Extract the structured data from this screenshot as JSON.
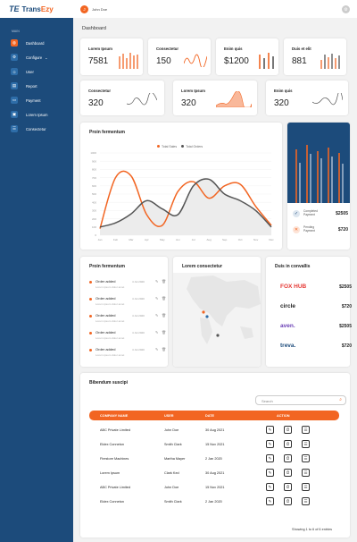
{
  "app": {
    "logo_mark": "TE",
    "logo_name_a": "Trans",
    "logo_name_b": "Ezy"
  },
  "sidebar": {
    "section": "MAIN",
    "items": [
      {
        "label": "Dashboard",
        "icon": "dashboard-icon",
        "glyph": "◍"
      },
      {
        "label": "Configure",
        "icon": "configure-icon",
        "glyph": "⚙",
        "chevron": "⌄"
      },
      {
        "label": "User",
        "icon": "user-icon",
        "glyph": "☺"
      },
      {
        "label": "Report",
        "icon": "report-icon",
        "glyph": "▤"
      },
      {
        "label": "Payment",
        "icon": "payment-icon",
        "glyph": "▭"
      },
      {
        "label": "Lorem Ipsum",
        "icon": "lorem-icon",
        "glyph": "▣"
      },
      {
        "label": "Consectetur",
        "icon": "list-icon",
        "glyph": "☰"
      }
    ]
  },
  "topbar": {
    "avatar": "J",
    "user": "John Doe",
    "btn": "⚙"
  },
  "page": {
    "title": "Dashboard"
  },
  "stats": [
    {
      "label": "Lorem Ipsum",
      "value": "7581"
    },
    {
      "label": "Consectetur",
      "value": "150"
    },
    {
      "label": "Enim quis",
      "value": "$1200"
    },
    {
      "label": "Duis et elit",
      "value": "881"
    },
    {
      "label": "Consectetur",
      "value": "320"
    },
    {
      "label": "Lorem Ipsum",
      "value": "320"
    },
    {
      "label": "Enim quis",
      "value": "320"
    }
  ],
  "main_chart": {
    "title": "Proin fermentum",
    "legend": [
      "Total Sales",
      "Total Orders"
    ],
    "y_ticks": [
      "1000",
      "900",
      "800",
      "700",
      "600",
      "500",
      "400",
      "300",
      "200",
      "100",
      "0"
    ],
    "x_ticks": [
      "Jan",
      "Feb",
      "Mar",
      "Apr",
      "May",
      "Jun",
      "Jul",
      "Aug",
      "Sep",
      "Oct",
      "Nov",
      "Dec"
    ]
  },
  "chart_data": {
    "type": "line",
    "title": "Proin fermentum",
    "categories": [
      "Jan",
      "Feb",
      "Mar",
      "Apr",
      "May",
      "Jun",
      "Jul",
      "Aug",
      "Sep",
      "Oct",
      "Nov",
      "Dec"
    ],
    "series": [
      {
        "name": "Total Sales",
        "values": [
          80,
          700,
          720,
          250,
          120,
          530,
          650,
          450,
          600,
          620,
          350,
          120
        ]
      },
      {
        "name": "Total Orders",
        "values": [
          100,
          150,
          260,
          420,
          320,
          250,
          600,
          680,
          500,
          420,
          300,
          100
        ]
      }
    ],
    "ylim": [
      0,
      1000
    ],
    "colors": [
      "#f26522",
      "#555555"
    ]
  },
  "payments": [
    {
      "label": "Completed Payment",
      "label_a": "Completed",
      "label_b": "Payment",
      "value": "$2505",
      "glyph": "✓"
    },
    {
      "label": "Pending Payment",
      "label_a": "Pending",
      "label_b": "Payment",
      "value": "$720",
      "glyph": "✕"
    }
  ],
  "activity": {
    "title": "Proin fermentum",
    "rows": [
      {
        "title": "Order added",
        "date": "4 Jul 2020",
        "sub": "Lorem ipsum dolor amet"
      },
      {
        "title": "Order added",
        "date": "4 Jul 2020",
        "sub": "Lorem ipsum dolor amet"
      },
      {
        "title": "Order added",
        "date": "4 Jul 2020",
        "sub": "Lorem ipsum dolor amet"
      },
      {
        "title": "Order added",
        "date": "4 Jul 2020",
        "sub": "Lorem ipsum dolor amet"
      },
      {
        "title": "Order added",
        "date": "4 Jul 2020",
        "sub": "Lorem ipsum dolor amet"
      }
    ]
  },
  "map": {
    "title": "Lorem consectetur"
  },
  "brands": {
    "title": "Duis in convallis",
    "rows": [
      {
        "name": "FOX HUB",
        "value": "$2505"
      },
      {
        "name": "circle",
        "value": "$720"
      },
      {
        "name": "aven.",
        "value": "$2505"
      },
      {
        "name": "treva.",
        "value": "$720"
      }
    ]
  },
  "table": {
    "title": "Bibendum suscipi",
    "search_placeholder": "Search",
    "headers": [
      "COMPANY NAME",
      "USER",
      "DATE",
      "ACTION"
    ],
    "rows": [
      {
        "company": "ABC Private Limited",
        "user": "John Doe",
        "date": "30 Aug 2021"
      },
      {
        "company": "Eldex Conneton",
        "user": "Smith Clark",
        "date": "15 Nov 2021"
      },
      {
        "company": "Firestore Machines",
        "user": "Martha Mayer",
        "date": "2 Jan 2020"
      },
      {
        "company": "Lorem Ipsum",
        "user": "Clark Ked",
        "date": "30 Aug 2021"
      },
      {
        "company": "ABC Private Limited",
        "user": "John Doe",
        "date": "15 Nov 2021"
      },
      {
        "company": "Eldex Conneton",
        "user": "Smith Clark",
        "date": "2 Jan 2020"
      }
    ],
    "action_glyphs": [
      "✎",
      "⏱",
      "☰"
    ],
    "footer": "Showing 1 to 6 of 6 entries"
  },
  "colors": {
    "accent": "#f26522",
    "sidebar": "#1c4b7b"
  }
}
